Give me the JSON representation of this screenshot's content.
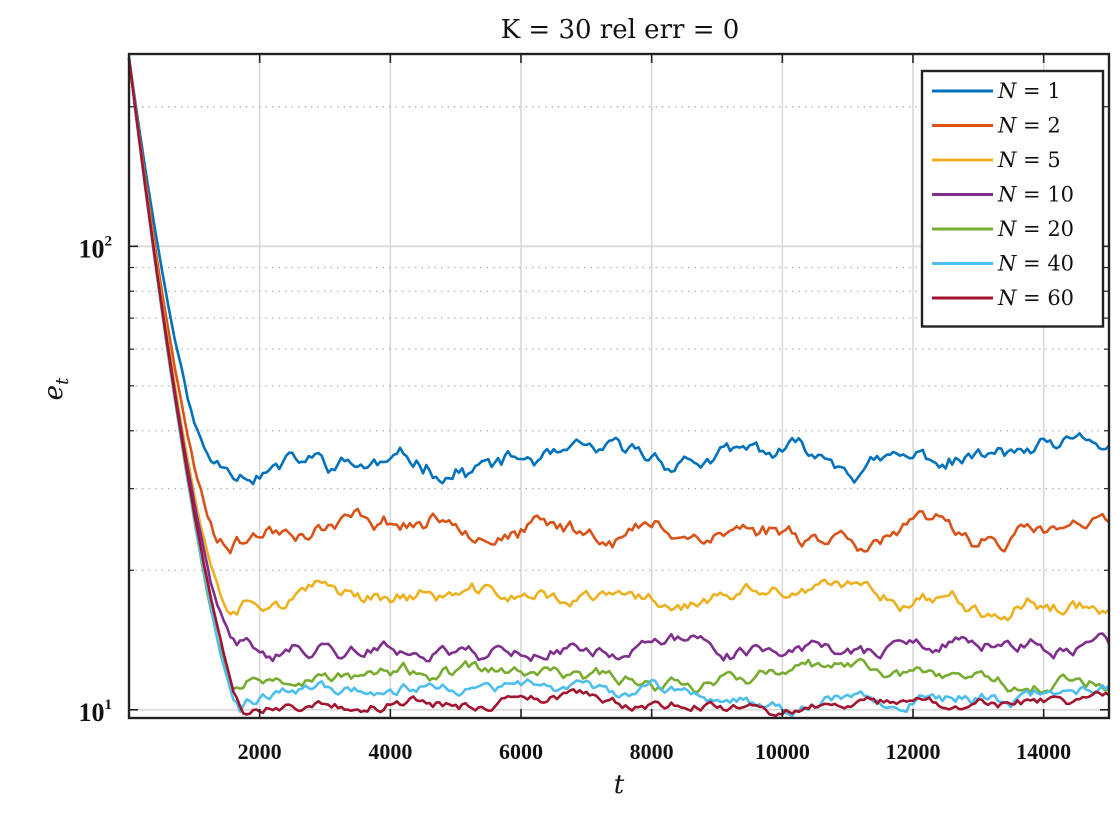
{
  "chart_data": {
    "type": "line",
    "title": "K = 30 rel err = 0",
    "xlabel": "t",
    "ylabel": "e",
    "ylabel_subscript": "t",
    "xlim": [
      0,
      15000
    ],
    "ylim": [
      9.6,
      260
    ],
    "yscale": "log",
    "grid": true,
    "minor_grid_y": true,
    "legend_position": "top-right",
    "x_ticks": [
      2000,
      4000,
      6000,
      8000,
      10000,
      12000,
      14000
    ],
    "x_tick_labels": [
      "2000",
      "4000",
      "6000",
      "8000",
      "10000",
      "12000",
      "14000"
    ],
    "y_ticks": [
      {
        "value": 10,
        "base": "10",
        "exp": "1"
      },
      {
        "value": 100,
        "base": "10",
        "exp": "2"
      }
    ],
    "initial_value": 255,
    "x_step": 50,
    "series": [
      {
        "name": "N = 1",
        "color": "#0072BD",
        "plateau": 35.0,
        "noise": 2.6,
        "seed": 11,
        "decay_time": 1250
      },
      {
        "name": "N = 2",
        "color": "#D95319",
        "plateau": 24.5,
        "noise": 1.8,
        "seed": 23,
        "decay_time": 1350
      },
      {
        "name": "N = 5",
        "color": "#EDB120",
        "plateau": 17.2,
        "noise": 1.1,
        "seed": 37,
        "decay_time": 1500
      },
      {
        "name": "N = 10",
        "color": "#7E2F8E",
        "plateau": 13.6,
        "noise": 0.8,
        "seed": 41,
        "decay_time": 1600
      },
      {
        "name": "N = 20",
        "color": "#77AC30",
        "plateau": 11.9,
        "noise": 0.65,
        "seed": 53,
        "decay_time": 1650
      },
      {
        "name": "N = 40",
        "color": "#4DBEEE",
        "plateau": 11.0,
        "noise": 0.55,
        "seed": 67,
        "decay_time": 1700
      },
      {
        "name": "N = 60",
        "color": "#A2142F",
        "plateau": 10.5,
        "noise": 0.45,
        "seed": 79,
        "decay_time": 1750
      }
    ]
  }
}
